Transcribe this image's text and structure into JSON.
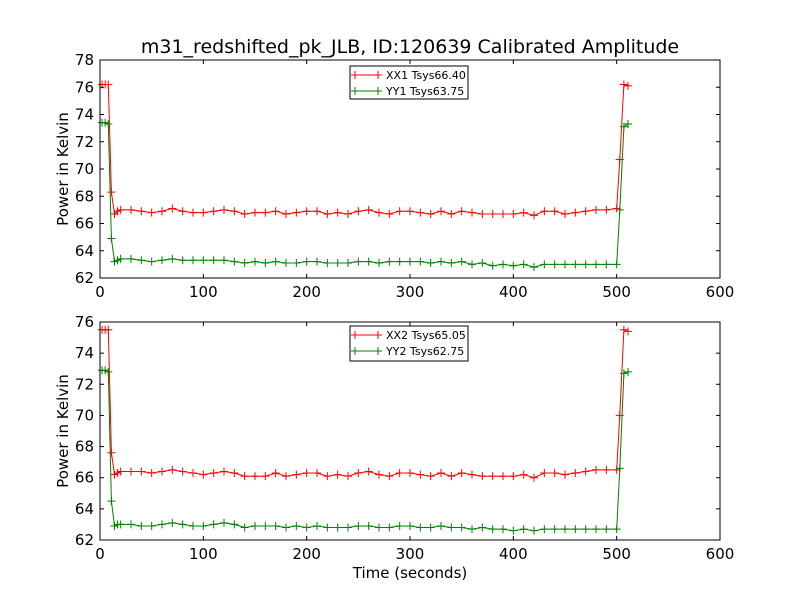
{
  "figure": {
    "title": "m31_redshifted_pk_JLB, ID:120639 Calibrated Amplitude",
    "colors": {
      "red": "#ff0000",
      "green": "#008000",
      "axis": "#000000"
    }
  },
  "chart_data": [
    {
      "type": "line",
      "title": "m31_redshifted_pk_JLB, ID:120639 Calibrated Amplitude",
      "xlabel": "",
      "ylabel": "Power in Kelvin",
      "xlim": [
        0,
        600
      ],
      "ylim": [
        62,
        78
      ],
      "xticks": [
        "0",
        "100",
        "200",
        "300",
        "400",
        "500",
        "600"
      ],
      "yticks": [
        "62",
        "64",
        "66",
        "68",
        "70",
        "72",
        "74",
        "76",
        "78"
      ],
      "legend_position": "top-center",
      "grid": false,
      "series": [
        {
          "name": "XX1 Tsys66.40",
          "color": "#ff0000",
          "marker": "+",
          "x": [
            2,
            5,
            8,
            11,
            14,
            17,
            20,
            30,
            40,
            50,
            60,
            70,
            80,
            90,
            100,
            110,
            120,
            130,
            140,
            150,
            160,
            170,
            180,
            190,
            200,
            210,
            220,
            230,
            240,
            250,
            260,
            270,
            280,
            290,
            300,
            310,
            320,
            330,
            340,
            350,
            360,
            370,
            380,
            390,
            400,
            410,
            420,
            430,
            440,
            450,
            460,
            470,
            480,
            490,
            500,
            503,
            507,
            511
          ],
          "y": [
            76.2,
            76.2,
            76.2,
            68.3,
            66.7,
            66.9,
            67.0,
            67.0,
            66.9,
            66.8,
            66.9,
            67.1,
            66.9,
            66.8,
            66.8,
            66.9,
            67.0,
            66.9,
            66.7,
            66.8,
            66.8,
            66.9,
            66.7,
            66.8,
            66.9,
            66.9,
            66.7,
            66.8,
            66.7,
            66.9,
            67.0,
            66.8,
            66.7,
            66.9,
            66.9,
            66.8,
            66.7,
            66.9,
            66.7,
            66.9,
            66.8,
            66.7,
            66.7,
            66.7,
            66.7,
            66.8,
            66.6,
            66.9,
            66.9,
            66.7,
            66.8,
            66.9,
            67.0,
            67.0,
            67.1,
            70.7,
            76.2,
            76.1
          ]
        },
        {
          "name": "YY1 Tsys63.75",
          "color": "#008000",
          "marker": "+",
          "x": [
            2,
            5,
            8,
            11,
            14,
            17,
            20,
            30,
            40,
            50,
            60,
            70,
            80,
            90,
            100,
            110,
            120,
            130,
            140,
            150,
            160,
            170,
            180,
            190,
            200,
            210,
            220,
            230,
            240,
            250,
            260,
            270,
            280,
            290,
            300,
            310,
            320,
            330,
            340,
            350,
            360,
            370,
            380,
            390,
            400,
            410,
            420,
            430,
            440,
            450,
            460,
            470,
            480,
            490,
            500,
            503,
            507,
            511
          ],
          "y": [
            73.4,
            73.4,
            73.3,
            64.9,
            63.2,
            63.3,
            63.4,
            63.4,
            63.3,
            63.2,
            63.3,
            63.4,
            63.3,
            63.3,
            63.3,
            63.3,
            63.3,
            63.2,
            63.1,
            63.2,
            63.1,
            63.2,
            63.1,
            63.1,
            63.2,
            63.2,
            63.1,
            63.1,
            63.1,
            63.2,
            63.2,
            63.1,
            63.2,
            63.2,
            63.2,
            63.2,
            63.1,
            63.2,
            63.1,
            63.2,
            63.0,
            63.1,
            62.9,
            63.0,
            62.9,
            63.0,
            62.8,
            63.0,
            63.0,
            63.0,
            63.0,
            63.0,
            63.0,
            63.0,
            63.0,
            67.0,
            73.1,
            73.3
          ]
        }
      ]
    },
    {
      "type": "line",
      "title": "",
      "xlabel": "Time (seconds)",
      "ylabel": "Power in Kelvin",
      "xlim": [
        0,
        600
      ],
      "ylim": [
        62,
        76
      ],
      "xticks": [
        "0",
        "100",
        "200",
        "300",
        "400",
        "500",
        "600"
      ],
      "yticks": [
        "62",
        "64",
        "66",
        "68",
        "70",
        "72",
        "74",
        "76"
      ],
      "legend_position": "top-center",
      "grid": false,
      "series": [
        {
          "name": "XX2 Tsys65.05",
          "color": "#ff0000",
          "marker": "+",
          "x": [
            2,
            5,
            8,
            11,
            14,
            17,
            20,
            30,
            40,
            50,
            60,
            70,
            80,
            90,
            100,
            110,
            120,
            130,
            140,
            150,
            160,
            170,
            180,
            190,
            200,
            210,
            220,
            230,
            240,
            250,
            260,
            270,
            280,
            290,
            300,
            310,
            320,
            330,
            340,
            350,
            360,
            370,
            380,
            390,
            400,
            410,
            420,
            430,
            440,
            450,
            460,
            470,
            480,
            490,
            500,
            503,
            507,
            511
          ],
          "y": [
            75.5,
            75.5,
            75.5,
            67.6,
            66.2,
            66.3,
            66.4,
            66.4,
            66.4,
            66.3,
            66.4,
            66.5,
            66.4,
            66.3,
            66.2,
            66.3,
            66.4,
            66.3,
            66.1,
            66.1,
            66.1,
            66.3,
            66.1,
            66.2,
            66.3,
            66.3,
            66.1,
            66.2,
            66.1,
            66.3,
            66.4,
            66.2,
            66.1,
            66.3,
            66.3,
            66.2,
            66.1,
            66.3,
            66.1,
            66.3,
            66.2,
            66.1,
            66.1,
            66.1,
            66.1,
            66.2,
            66.0,
            66.3,
            66.3,
            66.2,
            66.3,
            66.4,
            66.5,
            66.5,
            66.5,
            70.0,
            75.5,
            75.4
          ]
        },
        {
          "name": "YY2 Tsys62.75",
          "color": "#008000",
          "marker": "+",
          "x": [
            2,
            5,
            8,
            11,
            14,
            17,
            20,
            30,
            40,
            50,
            60,
            70,
            80,
            90,
            100,
            110,
            120,
            130,
            140,
            150,
            160,
            170,
            180,
            190,
            200,
            210,
            220,
            230,
            240,
            250,
            260,
            270,
            280,
            290,
            300,
            310,
            320,
            330,
            340,
            350,
            360,
            370,
            380,
            390,
            400,
            410,
            420,
            430,
            440,
            450,
            460,
            470,
            480,
            490,
            500,
            503,
            507,
            511
          ],
          "y": [
            72.9,
            72.9,
            72.8,
            64.5,
            62.9,
            63.0,
            63.0,
            63.0,
            62.9,
            62.9,
            63.0,
            63.1,
            63.0,
            62.9,
            62.9,
            63.0,
            63.1,
            63.0,
            62.8,
            62.9,
            62.9,
            62.9,
            62.8,
            62.9,
            62.8,
            62.9,
            62.8,
            62.8,
            62.8,
            62.9,
            62.9,
            62.8,
            62.8,
            62.9,
            62.9,
            62.8,
            62.8,
            62.9,
            62.8,
            62.8,
            62.7,
            62.8,
            62.7,
            62.7,
            62.6,
            62.7,
            62.6,
            62.7,
            62.7,
            62.7,
            62.7,
            62.7,
            62.7,
            62.7,
            62.7,
            66.6,
            72.7,
            72.8
          ]
        }
      ]
    }
  ]
}
